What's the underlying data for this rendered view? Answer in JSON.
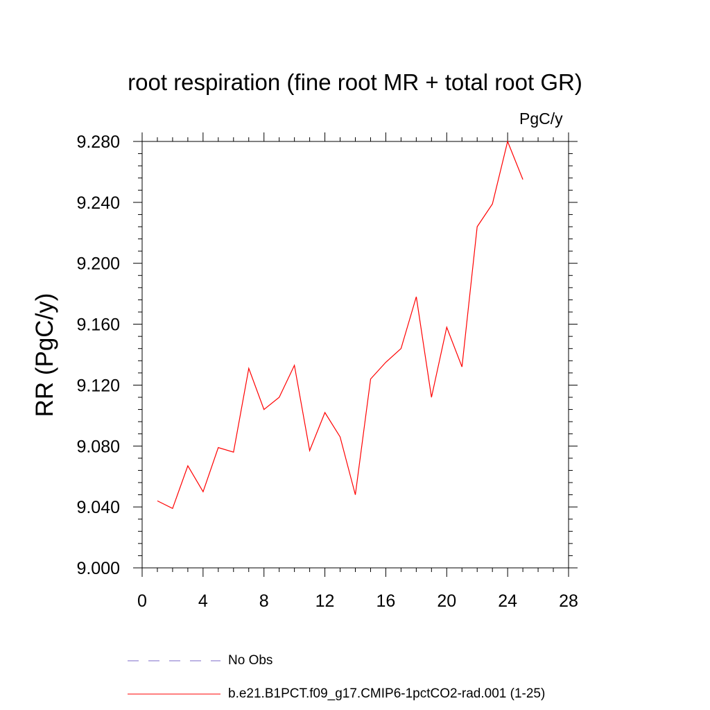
{
  "chart_data": {
    "type": "line",
    "title": "root respiration (fine root MR + total root GR)",
    "units": "PgC/y",
    "ylabel": "RR  (PgC/y)",
    "xlabel": "",
    "xlim": [
      0,
      28
    ],
    "ylim": [
      9.0,
      9.28
    ],
    "xticks": [
      0,
      4,
      8,
      12,
      16,
      20,
      24,
      28
    ],
    "xtick_labels": [
      "0",
      "4",
      "8",
      "12",
      "16",
      "20",
      "24",
      "28"
    ],
    "yticks": [
      9.0,
      9.04,
      9.08,
      9.12,
      9.16,
      9.2,
      9.24,
      9.28
    ],
    "ytick_labels": [
      "9.000",
      "9.040",
      "9.080",
      "9.120",
      "9.160",
      "9.200",
      "9.240",
      "9.280"
    ],
    "grid": false,
    "legend_placement": "bottom",
    "series": [
      {
        "name": "b.e21.B1PCT.f09_g17.CMIP6-1pctCO2-rad.001 (1-25)",
        "color": "#ff0000",
        "style": "solid",
        "x": [
          1,
          2,
          3,
          4,
          5,
          6,
          7,
          8,
          9,
          10,
          11,
          12,
          13,
          14,
          15,
          16,
          17,
          18,
          19,
          20,
          21,
          22,
          23,
          24,
          25
        ],
        "y": [
          9.044,
          9.039,
          9.067,
          9.05,
          9.079,
          9.076,
          9.131,
          9.104,
          9.112,
          9.133,
          9.077,
          9.102,
          9.086,
          9.048,
          9.124,
          9.135,
          9.144,
          9.178,
          9.112,
          9.158,
          9.132,
          9.224,
          9.239,
          9.28,
          9.255
        ]
      }
    ],
    "legend": [
      {
        "label": "No Obs",
        "color": "#7b68c8",
        "style": "dashed"
      },
      {
        "label": "b.e21.B1PCT.f09_g17.CMIP6-1pctCO2-rad.001 (1-25)",
        "color": "#ff0000",
        "style": "solid"
      }
    ]
  }
}
